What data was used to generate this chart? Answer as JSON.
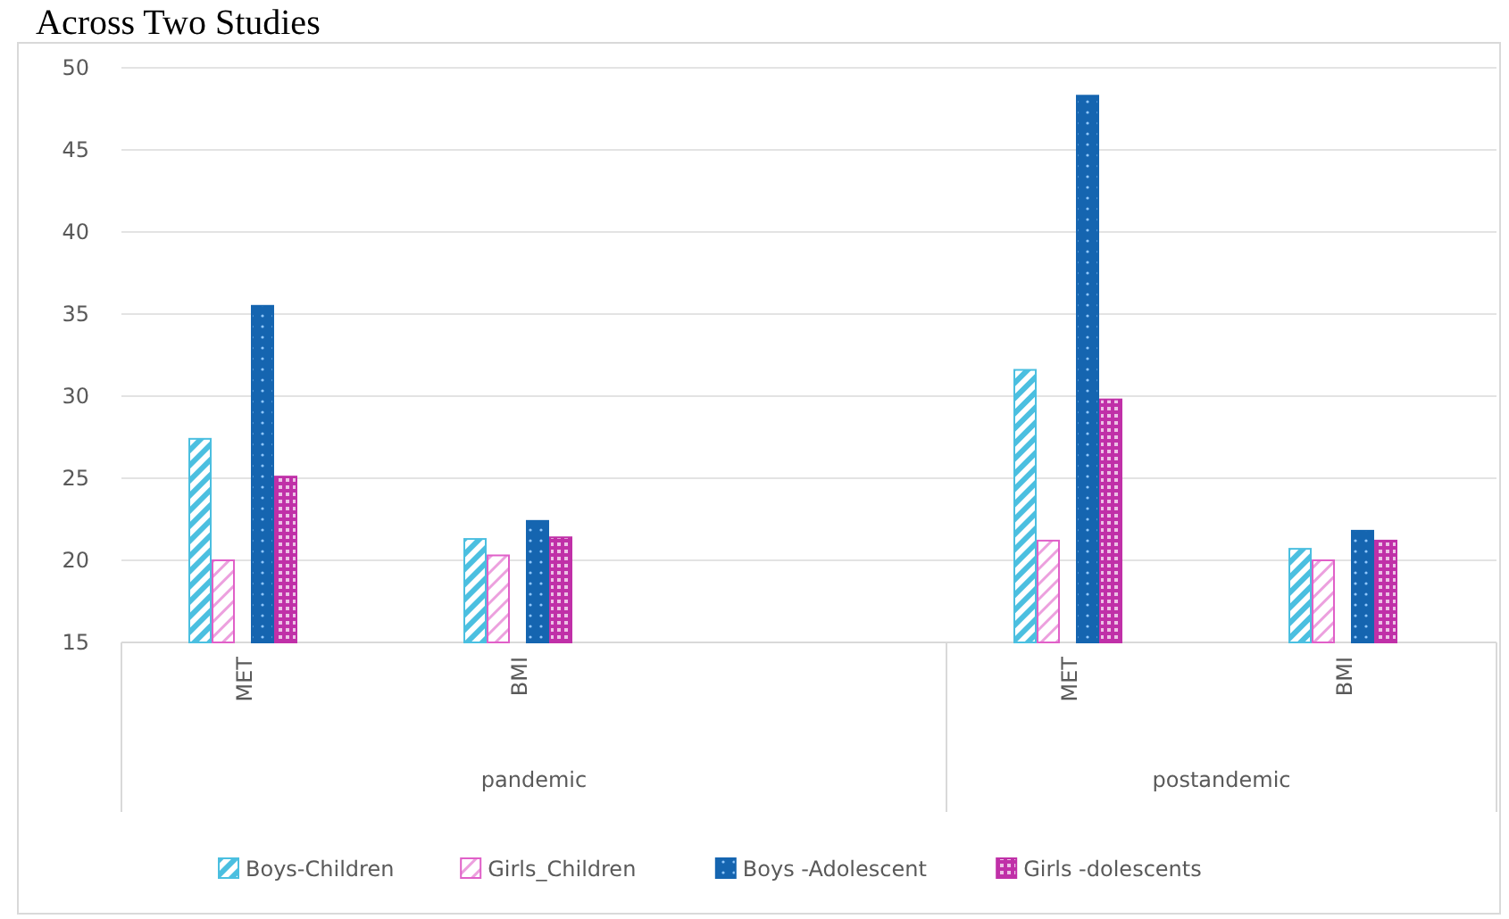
{
  "chart_data": {
    "type": "bar",
    "title": "Across Two Studies",
    "categories": [
      "MET",
      "BMI",
      null,
      "MET",
      "BMI"
    ],
    "annotations": [
      "pandemic",
      "postandemic"
    ],
    "series": [
      {
        "name": "Boys-Children",
        "color": "#4bbfe0",
        "values": [
          27.4,
          21.3,
          null,
          31.6,
          20.7
        ]
      },
      {
        "name": "Girls_Children",
        "color": "#e060c8",
        "values": [
          20.0,
          20.3,
          null,
          21.2,
          20.0
        ]
      },
      {
        "name": "Boys -Adolescent",
        "color": "#1565b0",
        "values": [
          35.5,
          22.4,
          null,
          48.3,
          21.8
        ]
      },
      {
        "name": "Girls -dolescents",
        "color": "#c030a8",
        "values": [
          25.1,
          21.4,
          null,
          29.8,
          21.2
        ]
      }
    ],
    "ylim": [
      15,
      50
    ],
    "yticks": [
      15,
      20,
      25,
      30,
      35,
      40,
      45,
      50
    ],
    "grid": "y",
    "legend": "bottom"
  }
}
